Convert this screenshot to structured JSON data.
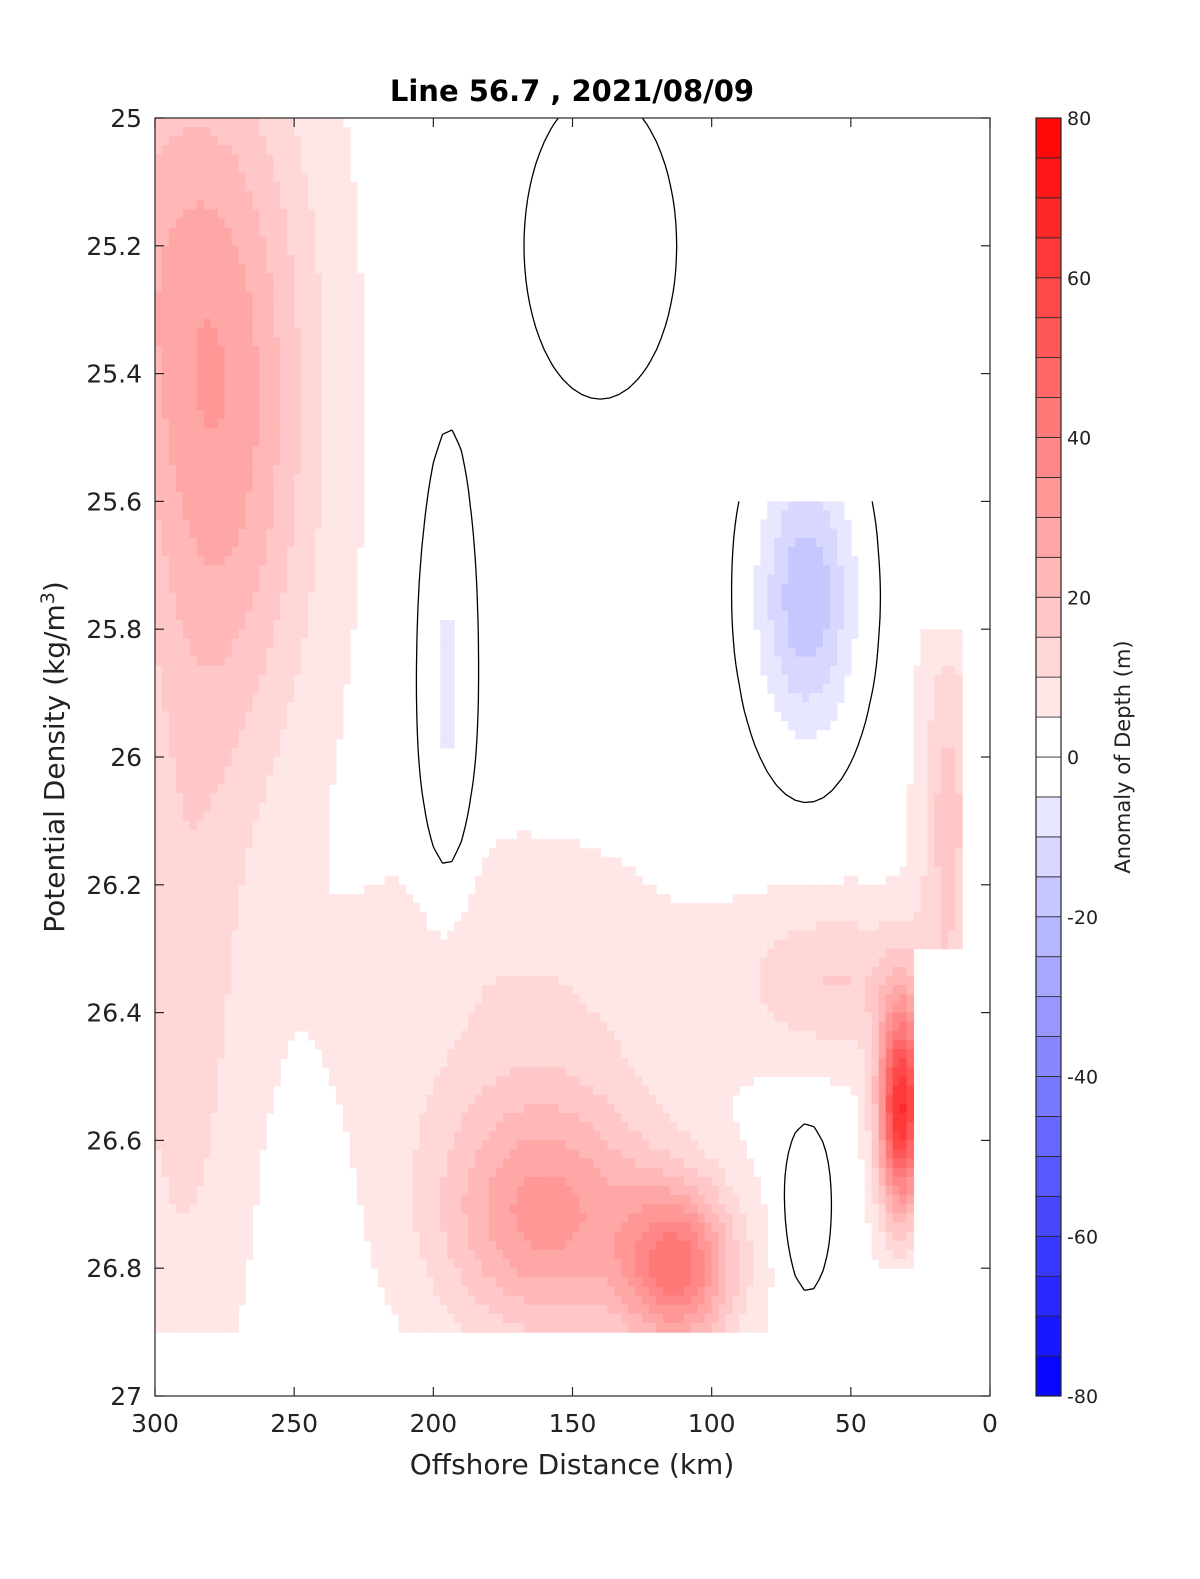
{
  "chart_data": {
    "type": "heatmap",
    "title": "Line 56.7 , 2021/08/09",
    "xlabel": "Offshore Distance (km)",
    "ylabel": "Potential Density (kg/m³)",
    "xlim": [
      300,
      0
    ],
    "ylim": [
      25,
      27
    ],
    "x_reversed": true,
    "y_reversed": true,
    "xticks": [
      "300",
      "250",
      "200",
      "150",
      "100",
      "50",
      "0"
    ],
    "yticks": [
      "25",
      "25.2",
      "25.4",
      "25.6",
      "25.8",
      "26",
      "26.2",
      "26.4",
      "26.6",
      "26.8",
      "27"
    ],
    "colorbar": {
      "label": "Anomaly of Depth (m)",
      "range": [
        -80,
        80
      ],
      "step": 5,
      "ticks": [
        "80",
        "60",
        "40",
        "20",
        "0",
        "-20",
        "-40",
        "-60",
        "-80"
      ],
      "colormap": "blue-white-red",
      "neg_color": "#0000ff",
      "zero_color": "#ffffff",
      "pos_color": "#ff0000"
    },
    "zero_contour_color": "#000000",
    "data_extent": {
      "x_range_km": [
        300,
        10
      ],
      "density_range": [
        25,
        26.9
      ]
    },
    "anomaly_features": [
      {
        "region": "offshore (x 300-230 km), sigma 25-25.9",
        "anomaly_m": 25
      },
      {
        "region": "x 200-100 km, sigma 26.6-26.85",
        "anomaly_m": 35
      },
      {
        "region": "nearshore (x 35-25 km), sigma 26.45-26.6",
        "anomaly_m": 70
      },
      {
        "region": "x 80-60 km, sigma 25.6-25.9",
        "anomaly_m": -20
      },
      {
        "region": "x 200-190 km, sigma 25.5-26.2",
        "anomaly_m": -5
      }
    ]
  }
}
